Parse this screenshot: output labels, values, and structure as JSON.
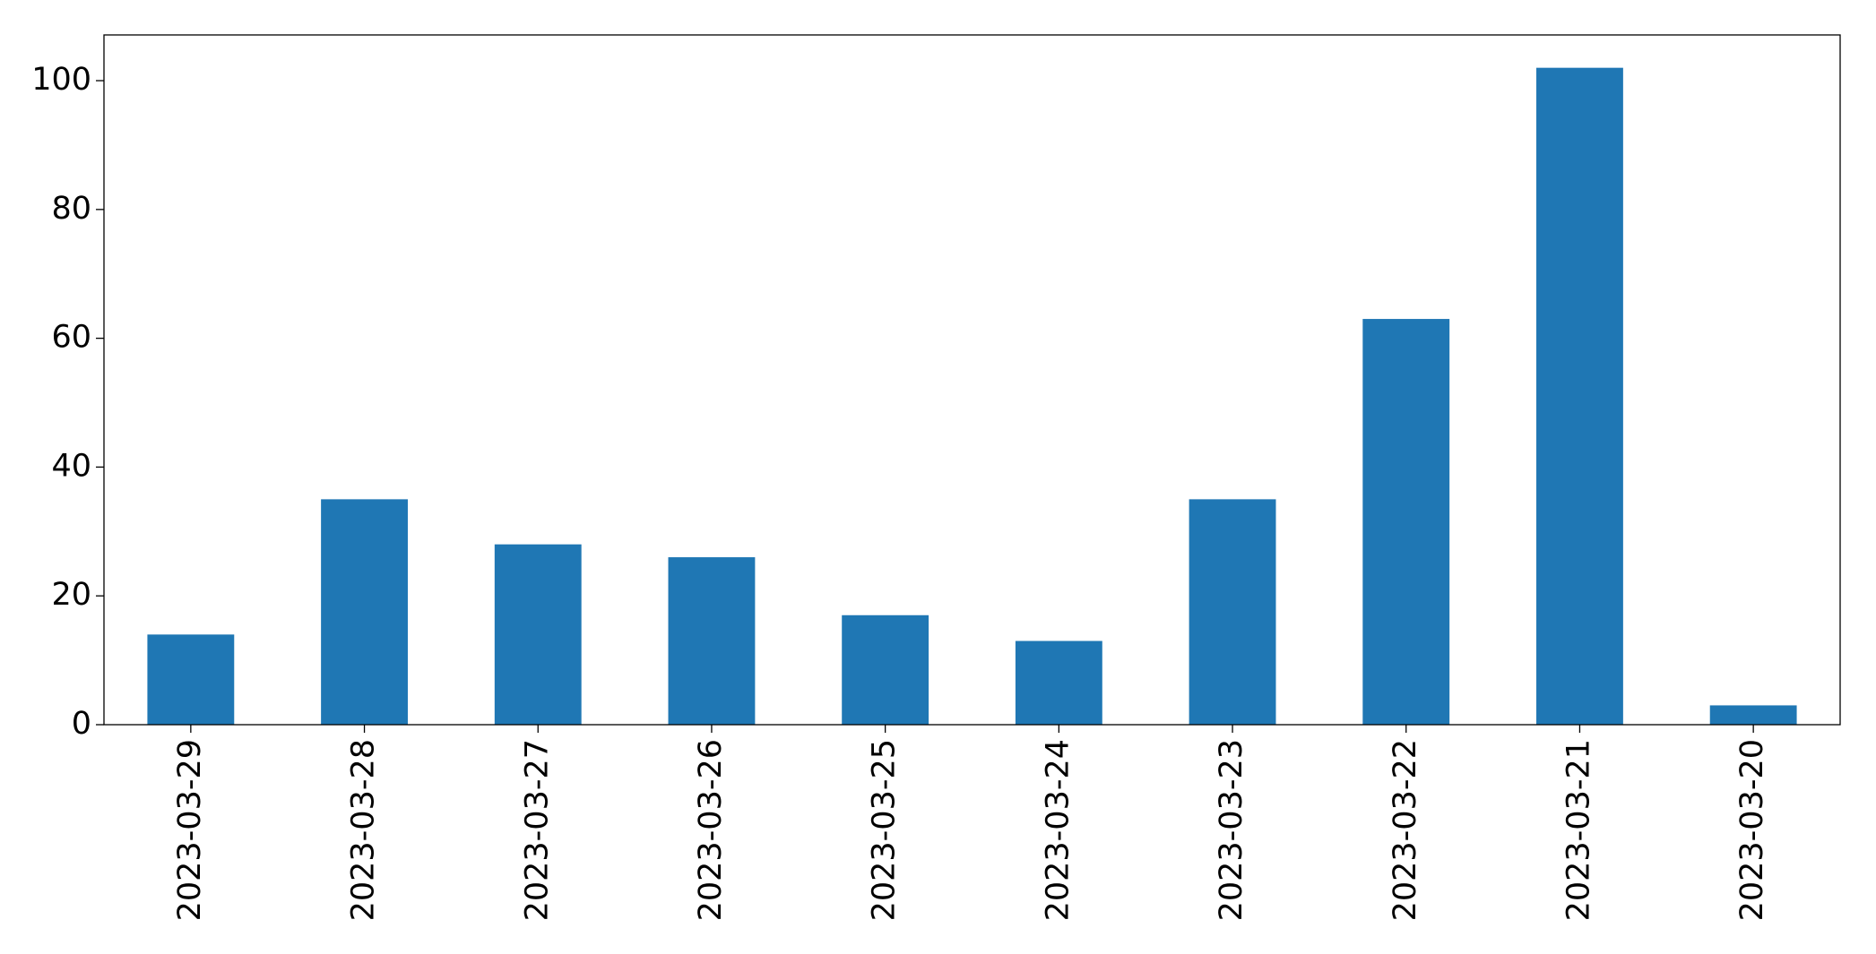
{
  "chart_data": {
    "type": "bar",
    "categories": [
      "2023-03-29",
      "2023-03-28",
      "2023-03-27",
      "2023-03-26",
      "2023-03-25",
      "2023-03-24",
      "2023-03-23",
      "2023-03-22",
      "2023-03-21",
      "2023-03-20"
    ],
    "values": [
      14,
      35,
      28,
      26,
      17,
      13,
      35,
      63,
      102,
      3
    ],
    "color": "#1f77b4",
    "ylim": [
      0,
      107.1
    ],
    "yticks": [
      0,
      20,
      40,
      60,
      80,
      100
    ],
    "grid": false
  }
}
